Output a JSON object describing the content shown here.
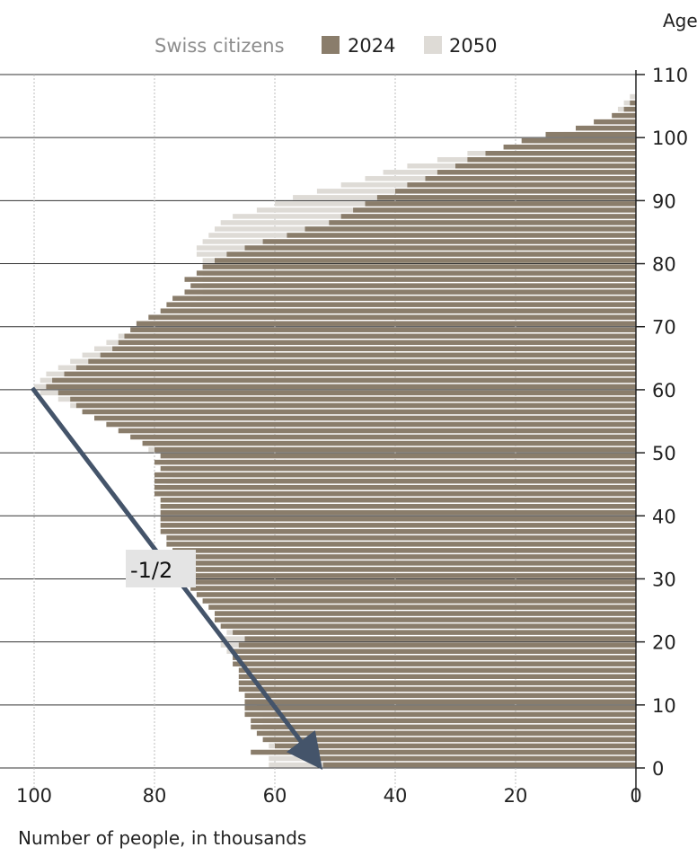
{
  "chart_data": {
    "type": "bar",
    "orientation": "horizontal",
    "legend": {
      "title": "Swiss citizens",
      "placement": "top"
    },
    "xlabel": "Number of people, in thousands",
    "ylabel": "Age",
    "xlim": [
      0,
      100
    ],
    "ylim": [
      0,
      110
    ],
    "x_ticks": [
      "100",
      "80",
      "60",
      "40",
      "20",
      "0"
    ],
    "y_ticks": [
      "0",
      "10",
      "20",
      "30",
      "40",
      "50",
      "60",
      "70",
      "80",
      "90",
      "100",
      "110"
    ],
    "ages": [
      0,
      1,
      2,
      3,
      4,
      5,
      6,
      7,
      8,
      9,
      10,
      11,
      12,
      13,
      14,
      15,
      16,
      17,
      18,
      19,
      20,
      21,
      22,
      23,
      24,
      25,
      26,
      27,
      28,
      29,
      30,
      31,
      32,
      33,
      34,
      35,
      36,
      37,
      38,
      39,
      40,
      41,
      42,
      43,
      44,
      45,
      46,
      47,
      48,
      49,
      50,
      51,
      52,
      53,
      54,
      55,
      56,
      57,
      58,
      59,
      60,
      61,
      62,
      63,
      64,
      65,
      66,
      67,
      68,
      69,
      70,
      71,
      72,
      73,
      74,
      75,
      76,
      77,
      78,
      79,
      80,
      81,
      82,
      83,
      84,
      85,
      86,
      87,
      88,
      89,
      90,
      91,
      92,
      93,
      94,
      95,
      96,
      97,
      98,
      99,
      100,
      101,
      102,
      103,
      104,
      105,
      106
    ],
    "series": [
      {
        "name": "2024",
        "color": "#8a7d6b",
        "values": [
          52,
          53,
          64,
          60,
          62,
          63,
          64,
          64,
          65,
          65,
          65,
          65,
          66,
          66,
          66,
          66,
          67,
          67,
          67,
          66,
          65,
          67,
          69,
          70,
          70,
          71,
          72,
          73,
          74,
          74,
          75,
          76,
          76,
          77,
          77,
          78,
          78,
          79,
          79,
          79,
          79,
          79,
          79,
          80,
          80,
          80,
          80,
          79,
          80,
          79,
          80,
          82,
          84,
          86,
          88,
          90,
          92,
          93,
          94,
          96,
          98,
          97,
          95,
          93,
          91,
          89,
          87,
          86,
          85,
          84,
          83,
          81,
          79,
          78,
          77,
          75,
          74,
          75,
          73,
          72,
          70,
          68,
          65,
          62,
          58,
          55,
          51,
          49,
          47,
          45,
          43,
          40,
          38,
          35,
          33,
          30,
          28,
          25,
          22,
          19,
          15,
          10,
          7,
          4,
          2,
          1,
          0
        ]
      },
      {
        "name": "2050",
        "color": "#dedbd6",
        "values": [
          61,
          61,
          60,
          61,
          61,
          61,
          62,
          62,
          62,
          63,
          63,
          64,
          64,
          64,
          65,
          65,
          66,
          67,
          68,
          69,
          69,
          68,
          68,
          69,
          70,
          71,
          72,
          73,
          74,
          74,
          75,
          75,
          76,
          77,
          77,
          78,
          78,
          78,
          79,
          79,
          79,
          79,
          78,
          78,
          78,
          78,
          77,
          78,
          78,
          79,
          81,
          82,
          84,
          86,
          88,
          90,
          92,
          94,
          96,
          99,
          100,
          99,
          98,
          96,
          94,
          92,
          90,
          88,
          86,
          84,
          82,
          79,
          76,
          74,
          73,
          72,
          72,
          72,
          72,
          71,
          72,
          73,
          73,
          72,
          71,
          70,
          69,
          67,
          63,
          60,
          57,
          53,
          49,
          45,
          42,
          38,
          33,
          28,
          22,
          17,
          12,
          9,
          6,
          4,
          3,
          2,
          1
        ]
      }
    ]
  },
  "annotation": {
    "label": "-1/2",
    "slope": "-1/2"
  }
}
